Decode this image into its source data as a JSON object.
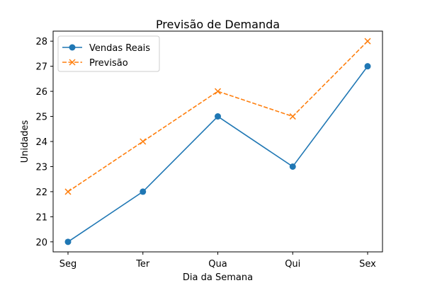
{
  "chart_data": {
    "type": "line",
    "title": "Previsão de Demanda",
    "xlabel": "Dia da Semana",
    "ylabel": "Unidades",
    "categories": [
      "Seg",
      "Ter",
      "Qua",
      "Qui",
      "Sex"
    ],
    "ylim": [
      19.6,
      28.4
    ],
    "yticks": [
      20,
      21,
      22,
      23,
      24,
      25,
      26,
      27,
      28
    ],
    "grid": false,
    "legend_position": "upper-left",
    "series": [
      {
        "name": "Vendas Reais",
        "values": [
          20,
          22,
          25,
          23,
          27
        ],
        "color": "#1f77b4",
        "line_style": "solid",
        "marker": "circle"
      },
      {
        "name": "Previsão",
        "values": [
          22,
          24,
          26,
          25,
          28
        ],
        "color": "#ff7f0e",
        "line_style": "dashed",
        "marker": "x"
      }
    ]
  }
}
